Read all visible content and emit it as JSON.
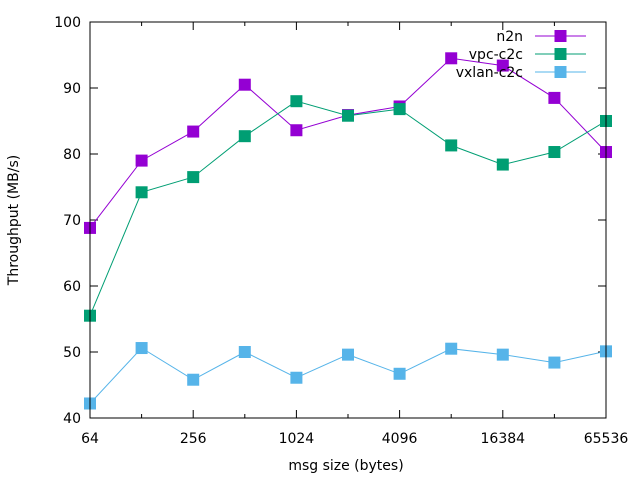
{
  "chart_data": {
    "type": "line",
    "title": "",
    "xlabel": "msg size (bytes)",
    "ylabel": "Throughput (MB/s)",
    "xscale": "log2",
    "x": [
      64,
      128,
      256,
      512,
      1024,
      2048,
      4096,
      8192,
      16384,
      32768,
      65536
    ],
    "xticks": [
      64,
      256,
      1024,
      4096,
      16384,
      65536
    ],
    "xtick_labels": [
      "64",
      "256",
      "1024",
      "4096",
      "16384",
      "65536"
    ],
    "ylim": [
      40,
      100
    ],
    "yticks": [
      40,
      50,
      60,
      70,
      80,
      90,
      100
    ],
    "ytick_labels": [
      "40",
      "50",
      "60",
      "70",
      "80",
      "90",
      "100"
    ],
    "legend_position": "top-right",
    "series": [
      {
        "name": "n2n",
        "color": "#9400d3",
        "marker": "square",
        "values": [
          68.8,
          79.0,
          83.4,
          90.5,
          83.6,
          85.9,
          87.2,
          94.5,
          93.4,
          88.5,
          80.3
        ]
      },
      {
        "name": "vpc-c2c",
        "color": "#009e73",
        "marker": "square",
        "values": [
          55.5,
          74.2,
          76.5,
          82.7,
          88.0,
          85.8,
          86.8,
          81.3,
          78.4,
          80.3,
          85.0
        ]
      },
      {
        "name": "vxlan-c2c",
        "color": "#56b4e9",
        "marker": "square",
        "values": [
          42.2,
          50.6,
          45.8,
          50.0,
          46.1,
          49.6,
          46.7,
          50.5,
          49.6,
          48.4,
          50.1
        ]
      }
    ]
  }
}
